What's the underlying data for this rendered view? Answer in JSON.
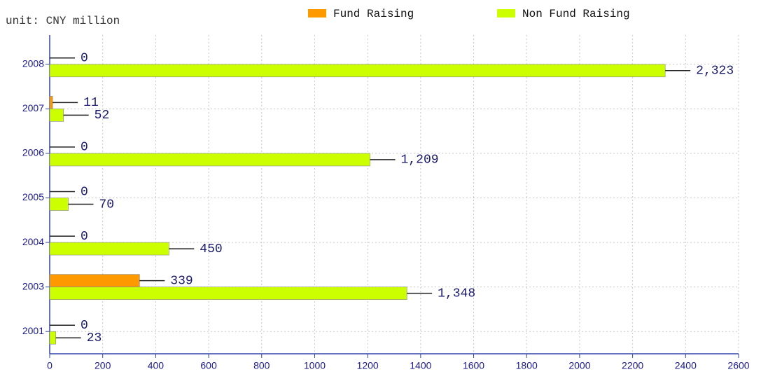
{
  "chart_data": {
    "type": "hbar",
    "subtitle": "unit: CNY million",
    "categories": [
      "2001",
      "2003",
      "2004",
      "2005",
      "2006",
      "2007",
      "2008"
    ],
    "series": [
      {
        "name": "Fund Raising",
        "color": "#ff9900",
        "values": [
          0,
          339,
          0,
          0,
          0,
          11,
          0
        ]
      },
      {
        "name": "Non Fund Raising",
        "color": "#ccff00",
        "values": [
          23,
          1348,
          450,
          70,
          1209,
          52,
          2323
        ],
        "value_labels": [
          "23",
          "1,348",
          "450",
          "70",
          "1,209",
          "52",
          "2,323"
        ]
      }
    ],
    "xlim": [
      0,
      2600
    ],
    "xticks": [
      0,
      200,
      400,
      600,
      800,
      1000,
      1200,
      1400,
      1600,
      1800,
      2000,
      2200,
      2400,
      2600
    ],
    "grid": true,
    "legend": "top"
  }
}
